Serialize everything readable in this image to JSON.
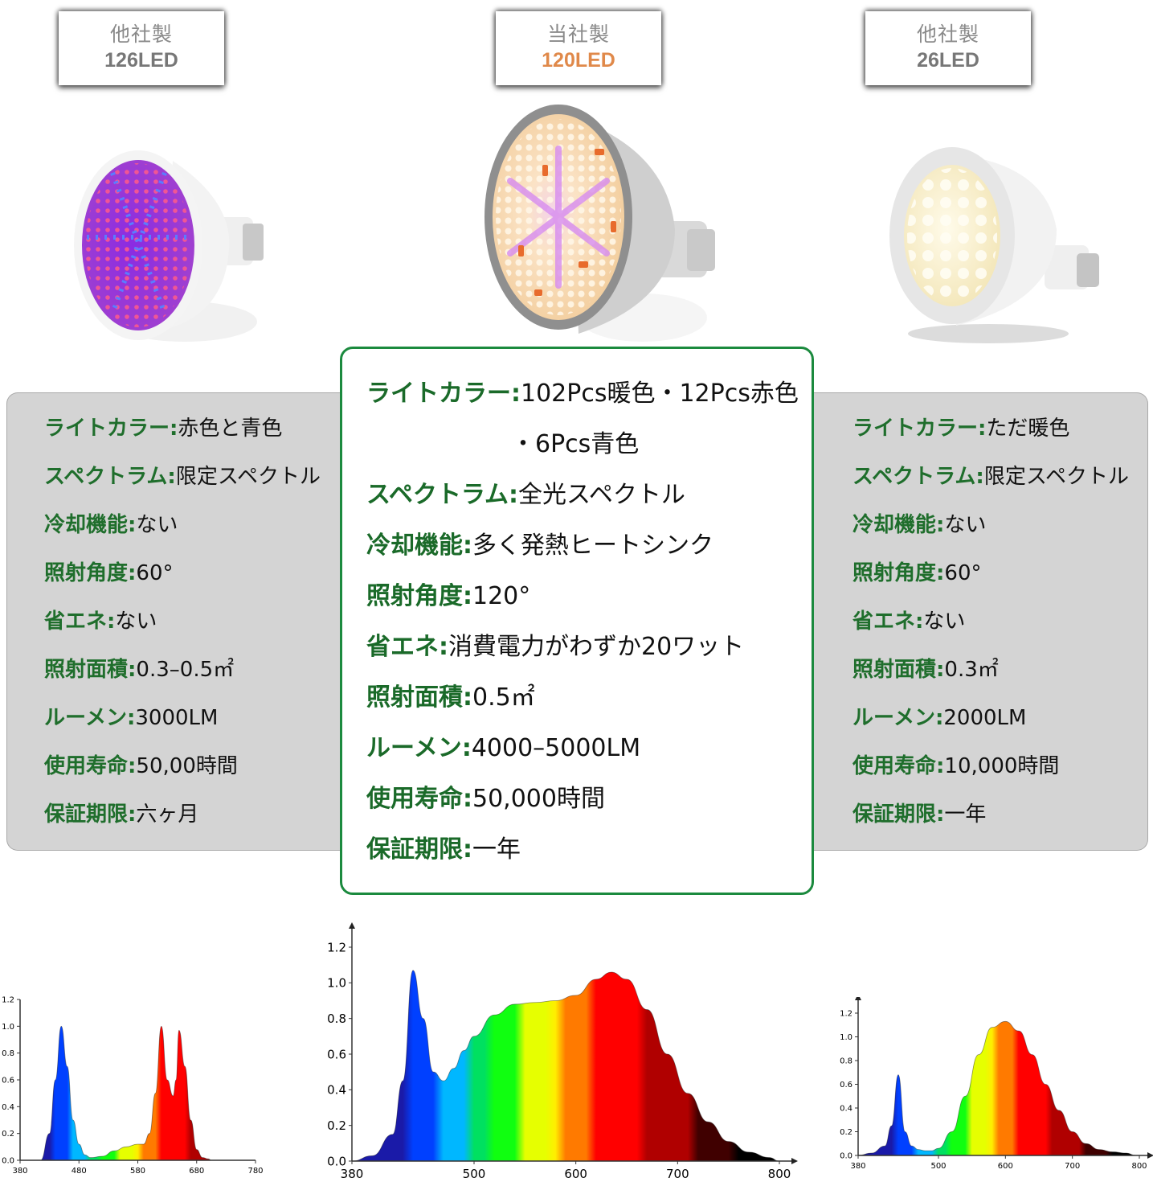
{
  "products": [
    {
      "id": "left",
      "maker_label": "他社製",
      "led_count": "126LED",
      "bulb_image": "purple-red-blue-grow-bulb",
      "specs": [
        {
          "key": "ライトカラー",
          "value": "赤色と青色"
        },
        {
          "key": "スペクトラム",
          "value": "限定スペクトル"
        },
        {
          "key": "冷却機能",
          "value": "ない"
        },
        {
          "key": "照射角度",
          "value": "60°"
        },
        {
          "key": "省エネ",
          "value": "ない"
        },
        {
          "key": "照射面積",
          "value": "0.3–0.5㎡"
        },
        {
          "key": "ルーメン",
          "value": "3000LM"
        },
        {
          "key": "使用寿命",
          "value": "50,00時間"
        },
        {
          "key": "保証期限",
          "value": "六ヶ月"
        }
      ]
    },
    {
      "id": "center",
      "maker_label": "当社製",
      "led_count": "120LED",
      "bulb_image": "full-spectrum-warm-bulb-heatsink",
      "specs": [
        {
          "key": "ライトカラー",
          "value": "102Pcs暖色・12Pcs赤色",
          "value_cont": "・6Pcs青色"
        },
        {
          "key": "スペクトラム",
          "value": "全光スペクトル"
        },
        {
          "key": "冷却機能",
          "value": "多く発熱ヒートシンク"
        },
        {
          "key": "照射角度",
          "value": "120°"
        },
        {
          "key": "省エネ",
          "value": "消費電力がわずか20ワット"
        },
        {
          "key": "照射面積",
          "value": "0.5㎡"
        },
        {
          "key": "ルーメン",
          "value": "4000–5000LM"
        },
        {
          "key": "使用寿命",
          "value": "50,000時間"
        },
        {
          "key": "保証期限",
          "value": "一年"
        }
      ]
    },
    {
      "id": "right",
      "maker_label": "他社製",
      "led_count": "26LED",
      "bulb_image": "white-warm-led-bulb",
      "specs": [
        {
          "key": "ライトカラー",
          "value": "ただ暖色"
        },
        {
          "key": "スペクトラム",
          "value": "限定スペクトル"
        },
        {
          "key": "冷却機能",
          "value": "ない"
        },
        {
          "key": "照射角度",
          "value": "60°"
        },
        {
          "key": "省エネ",
          "value": "ない"
        },
        {
          "key": "照射面積",
          "value": "0.3㎡"
        },
        {
          "key": "ルーメン",
          "value": "2000LM"
        },
        {
          "key": "使用寿命",
          "value": "10,000時間"
        },
        {
          "key": "保証期限",
          "value": "一年"
        }
      ]
    }
  ],
  "separator": ":",
  "colors": {
    "spec_key_green": "#1f6e2c",
    "center_border_green": "#1b8a3e",
    "ours_led_orange": "#e0894a",
    "gray_panel": "#d4d4d4",
    "label_gray": "#8a8a8a"
  },
  "chart_data": [
    {
      "type": "area",
      "title": "",
      "xlabel": "",
      "ylabel": "",
      "x_ticks": [
        "380",
        "480",
        "580",
        "680",
        "780"
      ],
      "y_ticks": [
        "0.0",
        "0.2",
        "0.4",
        "0.6",
        "0.8",
        "1.0",
        "1.2"
      ],
      "xlim": [
        380,
        780
      ],
      "ylim": [
        0,
        1.2
      ],
      "grid": false,
      "series": [
        {
          "name": "126LED spectrum (red+blue)",
          "x": [
            415,
            430,
            440,
            450,
            460,
            470,
            480,
            490,
            500,
            520,
            540,
            560,
            580,
            590,
            600,
            610,
            620,
            630,
            640,
            645,
            650,
            660,
            670,
            680,
            690,
            700,
            705
          ],
          "y": [
            0.0,
            0.2,
            0.6,
            1.0,
            0.7,
            0.3,
            0.12,
            0.04,
            0.02,
            0.03,
            0.07,
            0.1,
            0.12,
            0.12,
            0.2,
            0.5,
            1.0,
            0.6,
            0.48,
            0.6,
            0.97,
            0.7,
            0.3,
            0.08,
            0.02,
            0.01,
            0.0
          ]
        }
      ]
    },
    {
      "type": "area",
      "title": "",
      "xlabel": "",
      "ylabel": "",
      "x_ticks": [
        "380",
        "500",
        "600",
        "700",
        "800"
      ],
      "y_ticks": [
        "0.0",
        "0.2",
        "0.4",
        "0.6",
        "0.8",
        "1.0",
        "1.2"
      ],
      "xlim": [
        380,
        800
      ],
      "ylim": [
        0,
        1.2
      ],
      "grid": false,
      "series": [
        {
          "name": "120LED full spectrum",
          "x": [
            380,
            400,
            420,
            430,
            440,
            450,
            460,
            470,
            480,
            490,
            500,
            520,
            540,
            560,
            580,
            600,
            620,
            635,
            650,
            670,
            690,
            710,
            730,
            750,
            770,
            790,
            800
          ],
          "y": [
            0.0,
            0.03,
            0.15,
            0.45,
            1.07,
            0.8,
            0.5,
            0.45,
            0.52,
            0.62,
            0.7,
            0.82,
            0.88,
            0.89,
            0.9,
            0.93,
            1.02,
            1.06,
            1.02,
            0.85,
            0.6,
            0.38,
            0.22,
            0.11,
            0.05,
            0.02,
            0.0
          ]
        }
      ]
    },
    {
      "type": "area",
      "title": "",
      "xlabel": "",
      "ylabel": "",
      "x_ticks": [
        "380",
        "500",
        "600",
        "700",
        "800"
      ],
      "y_ticks": [
        "0.0",
        "0.2",
        "0.4",
        "0.6",
        "0.8",
        "1.0",
        "1.2"
      ],
      "xlim": [
        380,
        800
      ],
      "ylim": [
        0,
        1.2
      ],
      "grid": false,
      "series": [
        {
          "name": "26LED warm white spectrum",
          "x": [
            380,
            400,
            420,
            430,
            440,
            450,
            460,
            470,
            480,
            490,
            500,
            520,
            540,
            560,
            580,
            600,
            620,
            640,
            660,
            680,
            700,
            720,
            740,
            760,
            780,
            795
          ],
          "y": [
            0.0,
            0.02,
            0.08,
            0.25,
            0.68,
            0.2,
            0.08,
            0.05,
            0.04,
            0.04,
            0.06,
            0.2,
            0.5,
            0.85,
            1.08,
            1.13,
            1.05,
            0.85,
            0.6,
            0.38,
            0.2,
            0.1,
            0.05,
            0.03,
            0.02,
            0.0
          ]
        }
      ]
    }
  ]
}
